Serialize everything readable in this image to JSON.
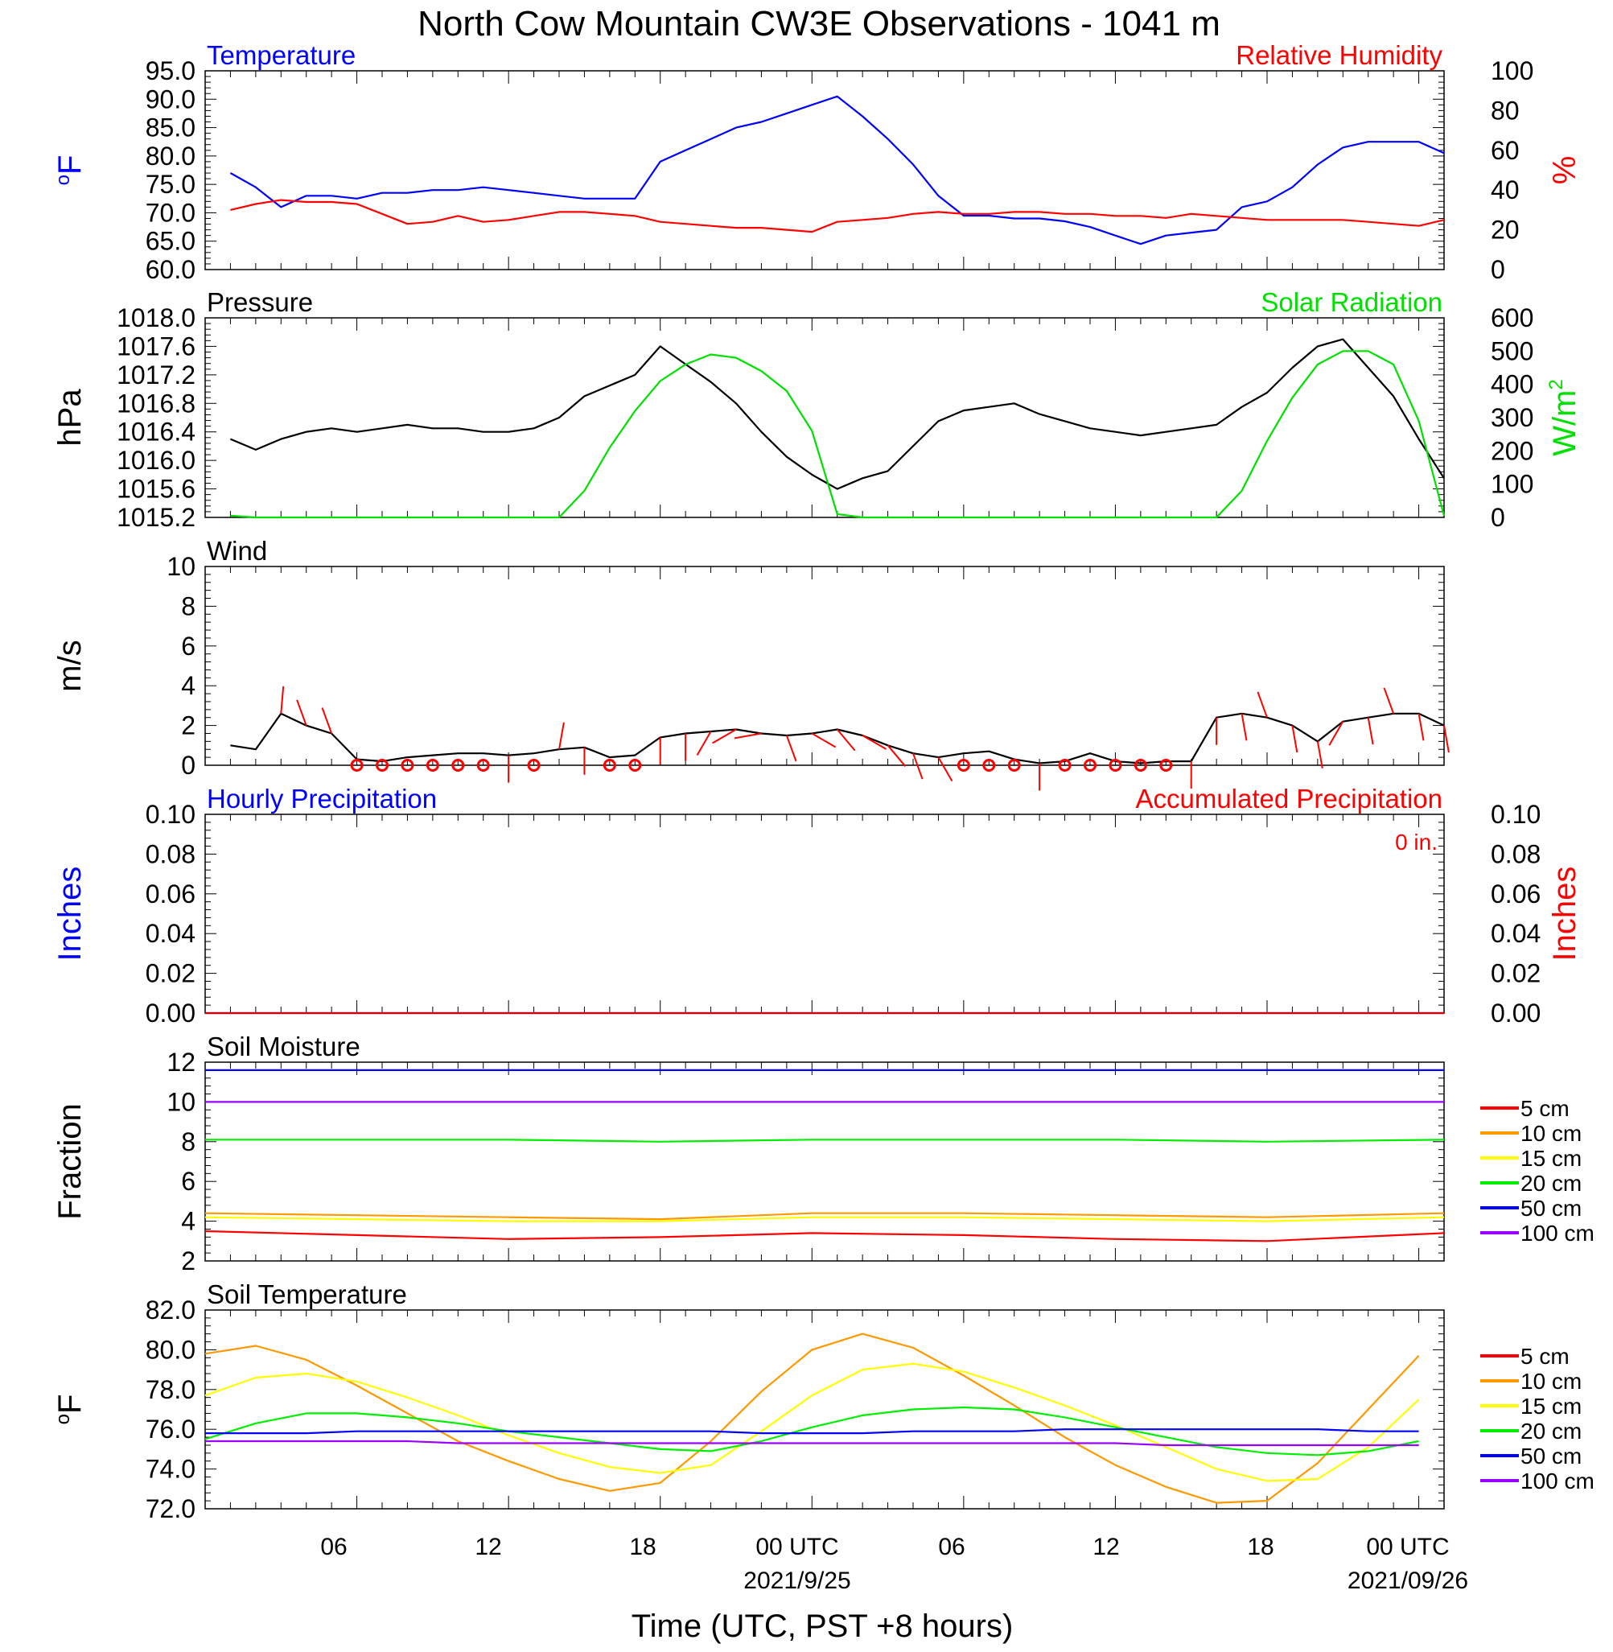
{
  "figure": {
    "title": "North Cow Mountain CW3E Observations - 1041 m",
    "xlabel": "Time (UTC, PST +8 hours)",
    "x_ticks": [
      "06",
      "12",
      "18",
      "00 UTC",
      "06",
      "12",
      "18",
      "00 UTC"
    ],
    "x_dates": [
      "2021/9/25",
      "2021/09/26"
    ]
  },
  "chart_data": [
    {
      "type": "line",
      "panel": "temperature-humidity",
      "title_left": "Temperature",
      "title_right": "Relative Humidity",
      "ylabel_left": "oF",
      "ylabel_right": "%",
      "ylim_left": [
        60,
        95
      ],
      "ylim_right": [
        0,
        100
      ],
      "yticks_left": [
        "95.0",
        "90.0",
        "85.0",
        "80.0",
        "75.0",
        "70.0",
        "65.0",
        "60.0"
      ],
      "yticks_right": [
        "100",
        "80",
        "60",
        "40",
        "20",
        "0"
      ],
      "x_hours": [
        1,
        2,
        3,
        4,
        5,
        6,
        7,
        8,
        9,
        10,
        11,
        12,
        13,
        14,
        15,
        16,
        17,
        18,
        19,
        20,
        21,
        22,
        23,
        24,
        25,
        26,
        27,
        28,
        29,
        30,
        31,
        32,
        33,
        34,
        35,
        36,
        37,
        38,
        39,
        40,
        41,
        42,
        43,
        44,
        45,
        46,
        47,
        48,
        49
      ],
      "series": [
        {
          "name": "Temperature",
          "color": "#0000ff",
          "axis": "left",
          "values": [
            77,
            74.5,
            71,
            73,
            73,
            72.5,
            73.5,
            73.5,
            74,
            74,
            74.5,
            74,
            73.5,
            73,
            72.5,
            72.5,
            72.5,
            79,
            81,
            83,
            85,
            86,
            87.5,
            89,
            90.5,
            87,
            83,
            78.5,
            73,
            69.5,
            69.5,
            69,
            69,
            68.5,
            67.5,
            66,
            64.5,
            66,
            66.5,
            67,
            71,
            72,
            74.5,
            78.5,
            81.5,
            82.5,
            82.5,
            82.5,
            80.5
          ]
        },
        {
          "name": "Relative Humidity",
          "color": "#ff0000",
          "axis": "right",
          "values": [
            30,
            33,
            35,
            34,
            34,
            33,
            28,
            23,
            24,
            27,
            24,
            25,
            27,
            29,
            29,
            28,
            27,
            24,
            23,
            22,
            21,
            21,
            20,
            19,
            24,
            25,
            26,
            28,
            29,
            28,
            28,
            29,
            29,
            28,
            28,
            27,
            27,
            26,
            28,
            27,
            26,
            25,
            25,
            25,
            25,
            24,
            23,
            22,
            25
          ]
        }
      ]
    },
    {
      "type": "line",
      "panel": "pressure-solar",
      "title_left": "Pressure",
      "title_right": "Solar Radiation",
      "ylabel_left": "hPa",
      "ylabel_right": "W/m2",
      "ylim_left": [
        1015.2,
        1018.0
      ],
      "ylim_right": [
        0,
        600
      ],
      "yticks_left": [
        "1018.0",
        "1017.6",
        "1017.2",
        "1016.8",
        "1016.4",
        "1016.0",
        "1015.6",
        "1015.2"
      ],
      "yticks_right": [
        "600",
        "500",
        "400",
        "300",
        "200",
        "100",
        "0"
      ],
      "x_hours": [
        1,
        2,
        3,
        4,
        5,
        6,
        7,
        8,
        9,
        10,
        11,
        12,
        13,
        14,
        15,
        16,
        17,
        18,
        19,
        20,
        21,
        22,
        23,
        24,
        25,
        26,
        27,
        28,
        29,
        30,
        31,
        32,
        33,
        34,
        35,
        36,
        37,
        38,
        39,
        40,
        41,
        42,
        43,
        44,
        45,
        46,
        47,
        48,
        49
      ],
      "series": [
        {
          "name": "Pressure",
          "color": "#000000",
          "axis": "left",
          "values": [
            1016.3,
            1016.15,
            1016.3,
            1016.4,
            1016.45,
            1016.4,
            1016.45,
            1016.5,
            1016.45,
            1016.45,
            1016.4,
            1016.4,
            1016.45,
            1016.6,
            1016.9,
            1017.05,
            1017.2,
            1017.6,
            1017.35,
            1017.1,
            1016.8,
            1016.4,
            1016.05,
            1015.8,
            1015.6,
            1015.75,
            1015.85,
            1016.2,
            1016.55,
            1016.7,
            1016.75,
            1016.8,
            1016.65,
            1016.55,
            1016.45,
            1016.4,
            1016.35,
            1016.4,
            1016.45,
            1016.5,
            1016.75,
            1016.95,
            1017.3,
            1017.6,
            1017.7,
            1017.3,
            1016.9,
            1016.3,
            1015.75
          ]
        },
        {
          "name": "Solar Radiation",
          "color": "#00e000",
          "axis": "right",
          "values": [
            5,
            0,
            0,
            0,
            0,
            0,
            0,
            0,
            0,
            0,
            0,
            0,
            0,
            0,
            80,
            210,
            320,
            410,
            460,
            490,
            480,
            440,
            380,
            260,
            10,
            0,
            0,
            0,
            0,
            0,
            0,
            0,
            0,
            0,
            0,
            0,
            0,
            0,
            0,
            0,
            80,
            230,
            360,
            460,
            500,
            500,
            460,
            290,
            5
          ]
        }
      ]
    },
    {
      "type": "line",
      "panel": "wind",
      "title_left": "Wind",
      "ylabel_left": "m/s",
      "ylim_left": [
        0,
        10
      ],
      "yticks_left": [
        "10",
        "8",
        "6",
        "4",
        "2",
        "0"
      ],
      "x_hours": [
        1,
        2,
        3,
        4,
        5,
        6,
        7,
        8,
        9,
        10,
        11,
        12,
        13,
        14,
        15,
        16,
        17,
        18,
        19,
        20,
        21,
        22,
        23,
        24,
        25,
        26,
        27,
        28,
        29,
        30,
        31,
        32,
        33,
        34,
        35,
        36,
        37,
        38,
        39,
        40,
        41,
        42,
        43,
        44,
        45,
        46,
        47,
        48,
        49
      ],
      "series": [
        {
          "name": "Wind speed",
          "color": "#000000",
          "axis": "left",
          "values": [
            1.0,
            0.8,
            2.6,
            2.0,
            1.6,
            0.3,
            0.2,
            0.4,
            0.5,
            0.6,
            0.6,
            0.5,
            0.6,
            0.8,
            0.9,
            0.4,
            0.5,
            1.4,
            1.6,
            1.7,
            1.8,
            1.6,
            1.5,
            1.6,
            1.8,
            1.5,
            1.0,
            0.6,
            0.4,
            0.6,
            0.7,
            0.3,
            0.1,
            0.2,
            0.6,
            0.2,
            0.1,
            0.2,
            0.2,
            2.4,
            2.6,
            2.4,
            2.0,
            1.2,
            2.2,
            2.4,
            2.6,
            2.6,
            2.0
          ]
        }
      ],
      "barb_hours": [
        3,
        4,
        5,
        6,
        7,
        8,
        9,
        10,
        11,
        12,
        13,
        14,
        15,
        16,
        17,
        18,
        19,
        20,
        21,
        22,
        23,
        24,
        25,
        26,
        27,
        28,
        29,
        30,
        31,
        32,
        33,
        34,
        35,
        36,
        37,
        38,
        39,
        40,
        41,
        42,
        43,
        44,
        45,
        46,
        47,
        48,
        49
      ],
      "barb_dirs": [
        175,
        200,
        200,
        0,
        0,
        0,
        0,
        0,
        0,
        0,
        0,
        170,
        0,
        175,
        175,
        0,
        0,
        330,
        300,
        280,
        20,
        60,
        40,
        60,
        40,
        20,
        30,
        10,
        0,
        0,
        0,
        250,
        0,
        0,
        0,
        0,
        0,
        0,
        10,
        200,
        10,
        10,
        330,
        10,
        200,
        10,
        10
      ],
      "calm_hours": [
        6,
        7,
        8,
        9,
        10,
        11,
        13,
        16,
        17,
        30,
        31,
        32,
        34,
        35,
        36,
        37,
        38
      ]
    },
    {
      "type": "line",
      "panel": "precipitation",
      "title_left": "Hourly Precipitation",
      "title_right": "Accumulated Precipitation",
      "annotation": "0 in.",
      "ylabel_left": "Inches",
      "ylabel_right": "Inches",
      "ylim_left": [
        0,
        0.1
      ],
      "ylim_right": [
        0,
        0.1
      ],
      "yticks_left": [
        "0.10",
        "0.08",
        "0.06",
        "0.04",
        "0.02",
        "0.00"
      ],
      "yticks_right": [
        "0.10",
        "0.08",
        "0.06",
        "0.04",
        "0.02",
        "0.00"
      ],
      "x_hours": [
        0,
        49
      ],
      "series": [
        {
          "name": "Hourly Precipitation",
          "color": "#0000ff",
          "axis": "left",
          "values": [
            0,
            0
          ]
        },
        {
          "name": "Accumulated Precipitation",
          "color": "#cc0000",
          "axis": "right",
          "values": [
            0,
            0
          ]
        }
      ]
    },
    {
      "type": "line",
      "panel": "soil-moisture",
      "title_left": "Soil Moisture",
      "ylabel_left": "Fraction",
      "ylim_left": [
        2,
        12
      ],
      "yticks_left": [
        "12",
        "10",
        "8",
        "6",
        "4",
        "2"
      ],
      "x_hours": [
        0,
        6,
        12,
        18,
        24,
        30,
        36,
        42,
        49
      ],
      "legend": [
        "5 cm",
        "10 cm",
        "15 cm",
        "20 cm",
        "50 cm",
        "100 cm"
      ],
      "legend_colors": [
        "#ff0000",
        "#ff9900",
        "#ffff00",
        "#00ee00",
        "#0000ff",
        "#9900ff"
      ],
      "series": [
        {
          "name": "5 cm",
          "color": "#ff0000",
          "values": [
            3.5,
            3.3,
            3.1,
            3.2,
            3.4,
            3.3,
            3.1,
            3.0,
            3.4
          ]
        },
        {
          "name": "10 cm",
          "color": "#ff9900",
          "values": [
            4.4,
            4.3,
            4.2,
            4.1,
            4.4,
            4.4,
            4.3,
            4.2,
            4.4
          ]
        },
        {
          "name": "15 cm",
          "color": "#ffff00",
          "values": [
            4.2,
            4.1,
            4.0,
            4.0,
            4.2,
            4.2,
            4.1,
            4.0,
            4.2
          ]
        },
        {
          "name": "20 cm",
          "color": "#00ee00",
          "values": [
            8.1,
            8.1,
            8.1,
            8.0,
            8.1,
            8.1,
            8.1,
            8.0,
            8.1
          ]
        },
        {
          "name": "50 cm",
          "color": "#0000ff",
          "values": [
            11.6,
            11.6,
            11.6,
            11.6,
            11.6,
            11.6,
            11.6,
            11.6,
            11.6
          ]
        },
        {
          "name": "100 cm",
          "color": "#9900ff",
          "values": [
            10.0,
            10.0,
            10.0,
            10.0,
            10.0,
            10.0,
            10.0,
            10.0,
            10.0
          ]
        }
      ]
    },
    {
      "type": "line",
      "panel": "soil-temperature",
      "title_left": "Soil Temperature",
      "ylabel_left": "oF",
      "ylim_left": [
        72,
        82
      ],
      "yticks_left": [
        "82.0",
        "80.0",
        "78.0",
        "76.0",
        "74.0",
        "72.0"
      ],
      "x_hours": [
        0,
        2,
        4,
        6,
        8,
        10,
        12,
        14,
        16,
        18,
        20,
        22,
        24,
        26,
        28,
        30,
        32,
        34,
        36,
        38,
        40,
        42,
        44,
        46,
        48
      ],
      "legend": [
        "5 cm",
        "10 cm",
        "15 cm",
        "20 cm",
        "50 cm",
        "100 cm"
      ],
      "legend_colors": [
        "#ff0000",
        "#ff9900",
        "#ffff00",
        "#00ee00",
        "#0000ff",
        "#9900ff"
      ],
      "series": [
        {
          "name": "10 cm",
          "color": "#ff9900",
          "values": [
            79.8,
            80.2,
            79.5,
            78.2,
            76.8,
            75.4,
            74.4,
            73.5,
            72.9,
            73.3,
            75.4,
            77.9,
            80.0,
            80.8,
            80.1,
            78.7,
            77.2,
            75.6,
            74.2,
            73.1,
            72.3,
            72.4,
            74.3,
            77.0,
            79.7
          ]
        },
        {
          "name": "15 cm",
          "color": "#ffff00",
          "values": [
            77.7,
            78.6,
            78.8,
            78.4,
            77.6,
            76.7,
            75.7,
            74.8,
            74.1,
            73.8,
            74.2,
            75.9,
            77.7,
            79.0,
            79.3,
            78.9,
            78.1,
            77.2,
            76.2,
            75.1,
            74.0,
            73.4,
            73.5,
            75.1,
            77.5
          ]
        },
        {
          "name": "20 cm",
          "color": "#00ee00",
          "values": [
            75.5,
            76.3,
            76.8,
            76.8,
            76.6,
            76.3,
            75.9,
            75.6,
            75.3,
            75.0,
            74.9,
            75.4,
            76.1,
            76.7,
            77.0,
            77.1,
            77.0,
            76.6,
            76.1,
            75.6,
            75.1,
            74.8,
            74.7,
            74.9,
            75.4
          ]
        },
        {
          "name": "50 cm",
          "color": "#0000ff",
          "values": [
            75.8,
            75.8,
            75.8,
            75.9,
            75.9,
            75.9,
            75.9,
            75.9,
            75.9,
            75.9,
            75.9,
            75.8,
            75.8,
            75.8,
            75.9,
            75.9,
            75.9,
            76.0,
            76.0,
            76.0,
            76.0,
            76.0,
            76.0,
            75.9,
            75.9
          ]
        },
        {
          "name": "100 cm",
          "color": "#9900ff",
          "values": [
            75.4,
            75.4,
            75.4,
            75.4,
            75.4,
            75.3,
            75.3,
            75.3,
            75.3,
            75.3,
            75.3,
            75.3,
            75.3,
            75.3,
            75.3,
            75.3,
            75.3,
            75.3,
            75.3,
            75.2,
            75.2,
            75.2,
            75.2,
            75.2,
            75.2
          ]
        }
      ]
    }
  ]
}
